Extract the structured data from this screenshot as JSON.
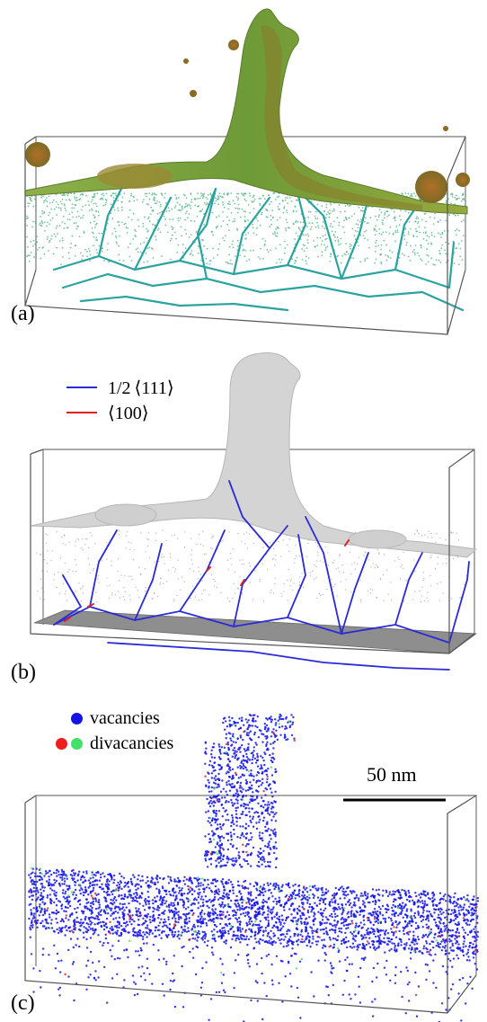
{
  "panels": [
    {
      "label": "(a)"
    },
    {
      "label": "(b)"
    },
    {
      "label": "(c)"
    }
  ],
  "legend_b": [
    {
      "text": "1/2 ⟨111⟩",
      "color": "#2a2ad8"
    },
    {
      "text": "⟨100⟩",
      "color": "#e02020"
    }
  ],
  "legend_c": {
    "vacancies": {
      "text": "vacancies",
      "color": "#1414e6"
    },
    "divacancies": {
      "text": "divacancies",
      "colors": [
        "#ee1e1e",
        "#44e06a"
      ]
    }
  },
  "scale_bar": {
    "text": "50 nm"
  },
  "colors": {
    "surface_green": "#7aa23a",
    "surface_orange": "#b06e2a",
    "dislocation_teal": "#2aa3a0",
    "atoms_green": "#46b078",
    "mesh_gray": "#c9c9c9",
    "box_edge": "#555555"
  }
}
